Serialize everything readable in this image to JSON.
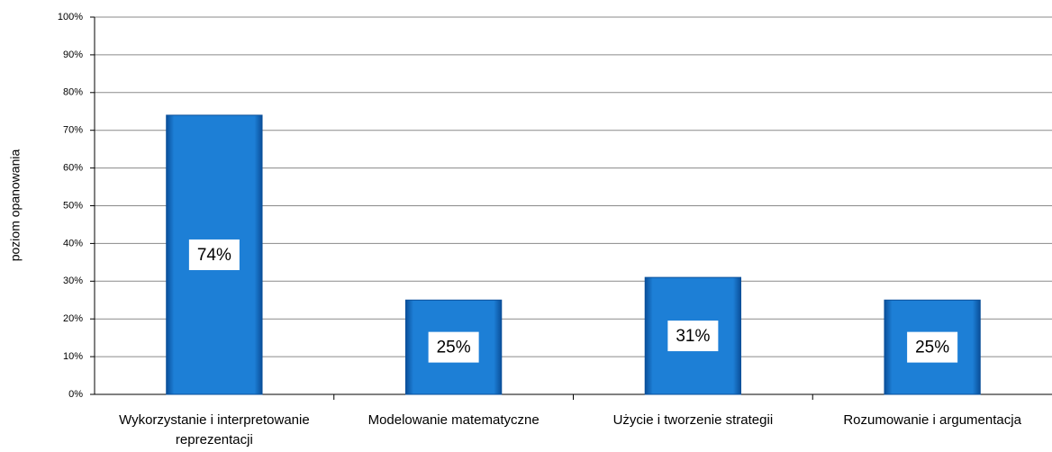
{
  "chart_data": {
    "type": "bar",
    "y_label": "poziom opanowania",
    "categories": [
      "Wykorzystanie i interpretowanie reprezentacji",
      "Modelowanie matematyczne",
      "Użycie i tworzenie strategii",
      "Rozumowanie i argumentacja"
    ],
    "values": [
      74,
      25,
      31,
      25
    ],
    "value_labels": [
      "74%",
      "25%",
      "31%",
      "25%"
    ],
    "color": "#1a73c8",
    "ylim": [
      0,
      100
    ],
    "yticks": [
      {
        "value": 0,
        "label": "0%"
      },
      {
        "value": 10,
        "label": "10%"
      },
      {
        "value": 20,
        "label": "20%"
      },
      {
        "value": 30,
        "label": "30%"
      },
      {
        "value": 40,
        "label": "40%"
      },
      {
        "value": 50,
        "label": "50%"
      },
      {
        "value": 60,
        "label": "60%"
      },
      {
        "value": 70,
        "label": "70%"
      },
      {
        "value": 80,
        "label": "80%"
      },
      {
        "value": 90,
        "label": "90%"
      },
      {
        "value": 100,
        "label": "100%"
      }
    ],
    "grid": true
  }
}
